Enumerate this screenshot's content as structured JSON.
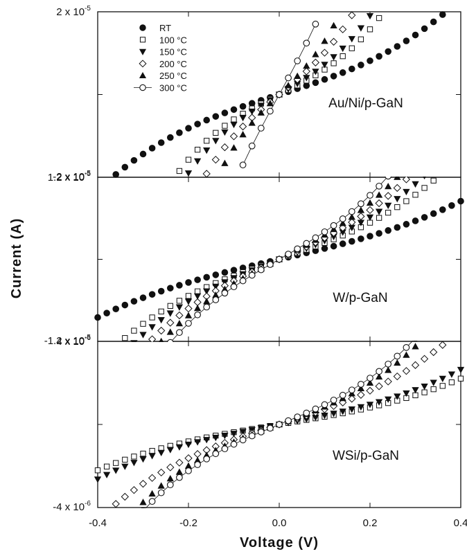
{
  "chart_data": {
    "type": "scatter",
    "xlabel": "Voltage (V)",
    "ylabel": "Current (A)",
    "xlim": [
      -0.4,
      0.4
    ],
    "x_ticks": [
      -0.4,
      -0.2,
      0.0,
      0.2,
      0.4
    ],
    "x_tick_labels": [
      "-0.4",
      "-0.2",
      "0.0",
      "0.2",
      "0.4"
    ],
    "legend": {
      "placement": "top-left of top panel",
      "entries": [
        {
          "label": "RT",
          "marker": "filled-circle"
        },
        {
          "label": "100 °C",
          "marker": "open-square"
        },
        {
          "label": "150 °C",
          "marker": "filled-triangle-down"
        },
        {
          "label": "200 °C",
          "marker": "open-diamond"
        },
        {
          "label": "250 °C",
          "marker": "filled-triangle-up"
        },
        {
          "label": "300 °C",
          "marker": "open-circle-line"
        }
      ]
    },
    "panels": [
      {
        "label": "Au/Ni/p-GaN",
        "ylim": [
          -2e-05,
          2e-05
        ],
        "y_tick_labels": [
          {
            "mantissa": "2 x 10",
            "exponent": "-5",
            "value": 2e-05
          },
          {
            "mantissa": "-2 x 10",
            "exponent": "-5",
            "value": -2e-05
          }
        ],
        "series": [
          {
            "label": "RT",
            "marker": "filled-circle",
            "slope": 3.5e-05,
            "cubic": 0.000144
          },
          {
            "label": "100 °C",
            "marker": "open-square",
            "slope": 5.4e-05,
            "cubic": 0.00062
          },
          {
            "label": "150 °C",
            "marker": "filled-triangle-down",
            "slope": 6.5e-05,
            "cubic": 0.00075
          },
          {
            "label": "200 °C",
            "marker": "open-diamond",
            "slope": 8.9e-05,
            "cubic": 0.0012
          },
          {
            "label": "250 °C",
            "marker": "filled-triangle-up",
            "slope": 0.000107,
            "cubic": 0.0022
          },
          {
            "label": "300 °C",
            "marker": "open-circle-line",
            "slope": 0.0002,
            "cubic": 0.002
          }
        ]
      },
      {
        "label": "W/p-GaN",
        "ylim": [
          -1.2e-05,
          1.2e-05
        ],
        "y_tick_labels": [
          {
            "mantissa": "1.2 x 10",
            "exponent": "-5",
            "value": 1.2e-05
          },
          {
            "mantissa": "-1.2 x 10",
            "exponent": "-5",
            "value": -1.2e-05
          }
        ],
        "series": [
          {
            "label": "RT",
            "marker": "filled-circle",
            "slope": 1.55e-05,
            "cubic": 3.6e-05
          },
          {
            "label": "100 °C",
            "marker": "open-square",
            "slope": 2.3e-05,
            "cubic": 9.4e-05
          },
          {
            "label": "150 °C",
            "marker": "filled-triangle-down",
            "slope": 2.6e-05,
            "cubic": 0.000119
          },
          {
            "label": "200 °C",
            "marker": "open-diamond",
            "slope": 3e-05,
            "cubic": 0.00015
          },
          {
            "label": "250 °C",
            "marker": "filled-triangle-up",
            "slope": 3.4e-05,
            "cubic": 0.00018
          },
          {
            "label": "300 °C",
            "marker": "open-circle-line",
            "slope": 3.8e-05,
            "cubic": 0.00022
          }
        ]
      },
      {
        "label": "WSi/p-GaN",
        "ylim": [
          -4e-06,
          4e-06
        ],
        "y_tick_labels": [
          {
            "mantissa": "4 x 10",
            "exponent": "-6",
            "value": 4e-06
          },
          {
            "mantissa": "-4 x 10",
            "exponent": "-6",
            "value": -4e-06
          }
        ],
        "series": [
          {
            "label": "100 °C",
            "marker": "open-square",
            "slope": 3.6e-06,
            "cubic": 1.2e-05
          },
          {
            "label": "150 °C",
            "marker": "filled-triangle-down",
            "slope": 4.2e-06,
            "cubic": 1.5e-05
          },
          {
            "label": "200 °C",
            "marker": "open-diamond",
            "slope": 7e-06,
            "cubic": 2.8e-05
          },
          {
            "label": "250 °C",
            "marker": "filled-triangle-up",
            "slope": 8e-06,
            "cubic": 5e-05
          },
          {
            "label": "300 °C",
            "marker": "open-circle-line",
            "slope": 9e-06,
            "cubic": 5.4e-05
          }
        ]
      }
    ]
  }
}
